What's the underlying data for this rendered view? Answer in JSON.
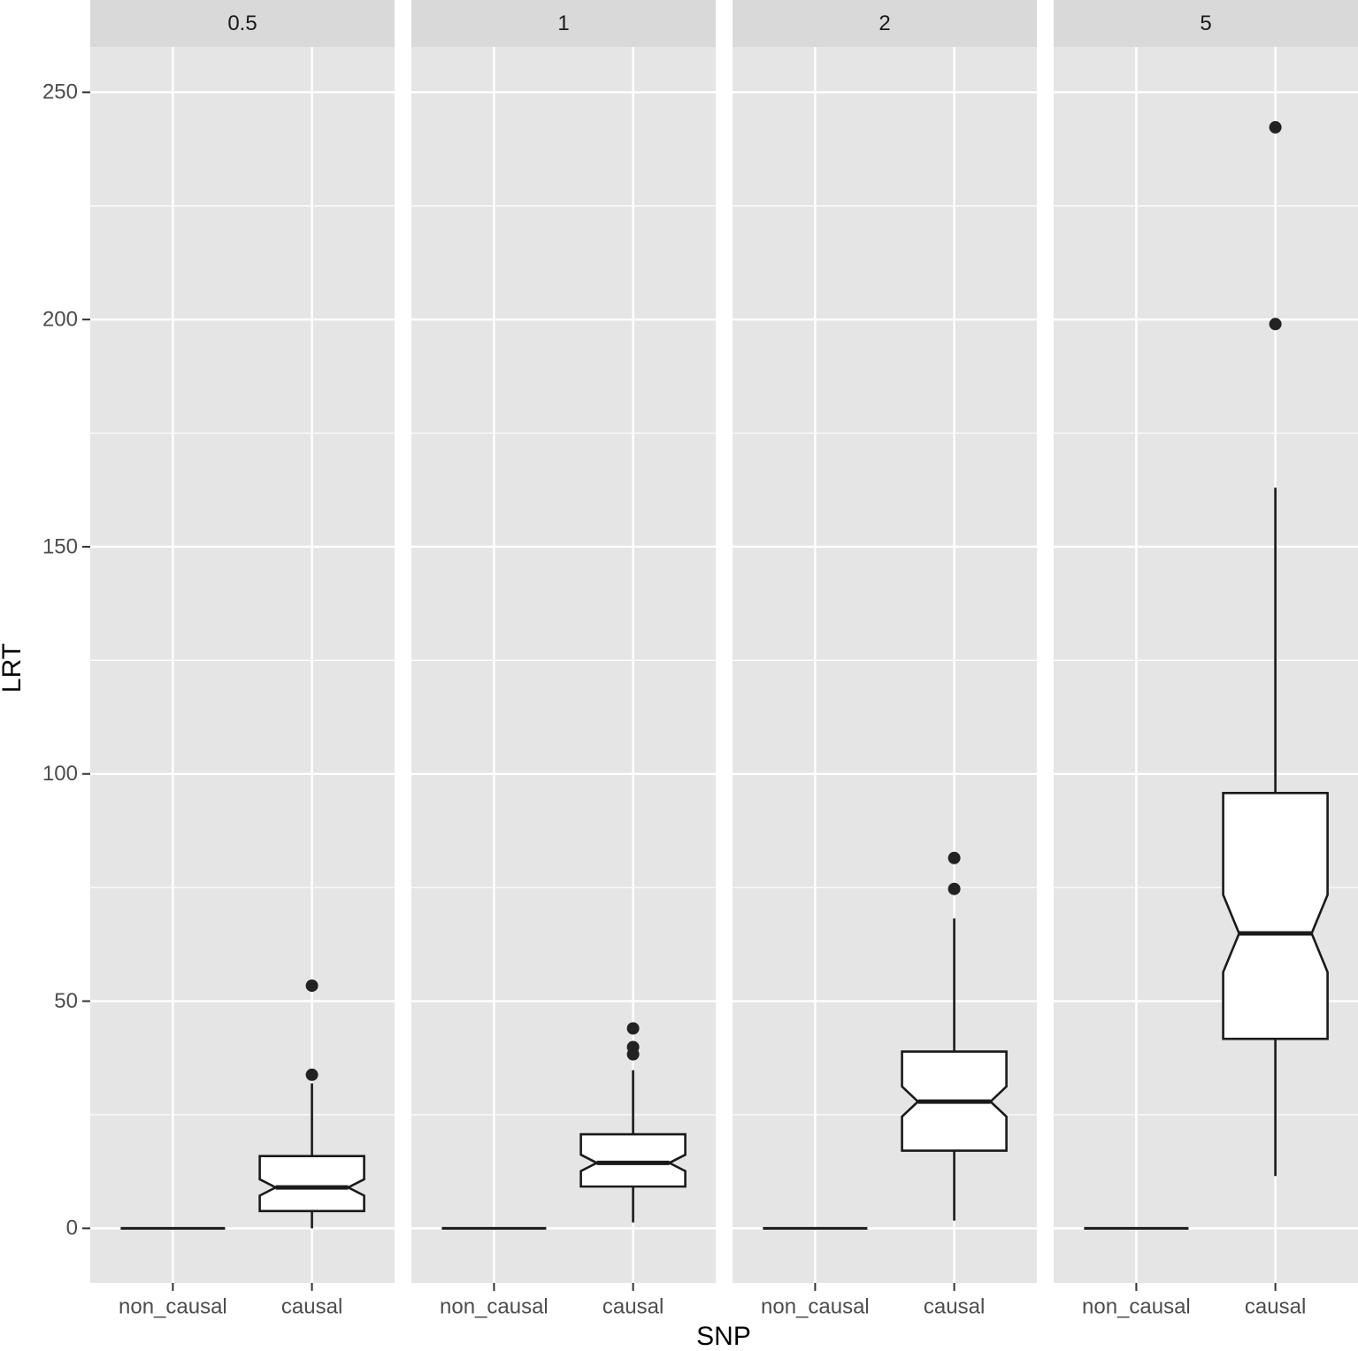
{
  "chart_data": {
    "type": "boxplot",
    "facet_type": "column-facets",
    "xlabel": "SNP",
    "ylabel": "LRT",
    "ylim": [
      -12,
      260
    ],
    "y_ticks": [
      0,
      50,
      100,
      150,
      200,
      250
    ],
    "categories": [
      "non_causal",
      "causal"
    ],
    "notched": true,
    "grid": true,
    "colors": {
      "panel_bg": "#e5e5e5",
      "strip_bg": "#d9d9d9",
      "grid": "#ffffff",
      "box_fill": "#ffffff",
      "line": "#1a1a1a",
      "outlier": "#222222"
    },
    "facets": [
      {
        "label": "0.5",
        "boxes": [
          {
            "category": "non_causal",
            "whisker_low": 0,
            "q1": 0,
            "median": 0,
            "q3": 0,
            "whisker_high": 0,
            "notch_low": 0,
            "notch_high": 0,
            "outliers": []
          },
          {
            "category": "causal",
            "whisker_low": 0,
            "q1": 3.8,
            "median": 9,
            "q3": 15.9,
            "whisker_high": 31.9,
            "notch_low": 7.2,
            "notch_high": 10.8,
            "outliers": [
              33.8,
              53.4
            ]
          }
        ]
      },
      {
        "label": "1",
        "boxes": [
          {
            "category": "non_causal",
            "whisker_low": 0,
            "q1": 0,
            "median": 0,
            "q3": 0,
            "whisker_high": 0,
            "notch_low": 0,
            "notch_high": 0,
            "outliers": []
          },
          {
            "category": "causal",
            "whisker_low": 1.3,
            "q1": 9.2,
            "median": 14.4,
            "q3": 20.7,
            "whisker_high": 34.8,
            "notch_low": 12.6,
            "notch_high": 16.2,
            "outliers": [
              38.3,
              39.9,
              44
            ]
          }
        ]
      },
      {
        "label": "2",
        "boxes": [
          {
            "category": "non_causal",
            "whisker_low": 0,
            "q1": 0,
            "median": 0,
            "q3": 0,
            "whisker_high": 0,
            "notch_low": 0,
            "notch_high": 0,
            "outliers": []
          },
          {
            "category": "causal",
            "whisker_low": 1.7,
            "q1": 17.1,
            "median": 27.9,
            "q3": 38.9,
            "whisker_high": 68.2,
            "notch_low": 24.6,
            "notch_high": 31.2,
            "outliers": [
              74.7,
              81.5
            ]
          }
        ]
      },
      {
        "label": "5",
        "boxes": [
          {
            "category": "non_causal",
            "whisker_low": 0,
            "q1": 0,
            "median": 0,
            "q3": 0,
            "whisker_high": 0,
            "notch_low": 0,
            "notch_high": 0,
            "outliers": []
          },
          {
            "category": "causal",
            "whisker_low": 11.5,
            "q1": 41.7,
            "median": 64.9,
            "q3": 95.8,
            "whisker_high": 163,
            "notch_low": 56.4,
            "notch_high": 73.4,
            "outliers": [
              199,
              242.3
            ]
          }
        ]
      }
    ]
  }
}
